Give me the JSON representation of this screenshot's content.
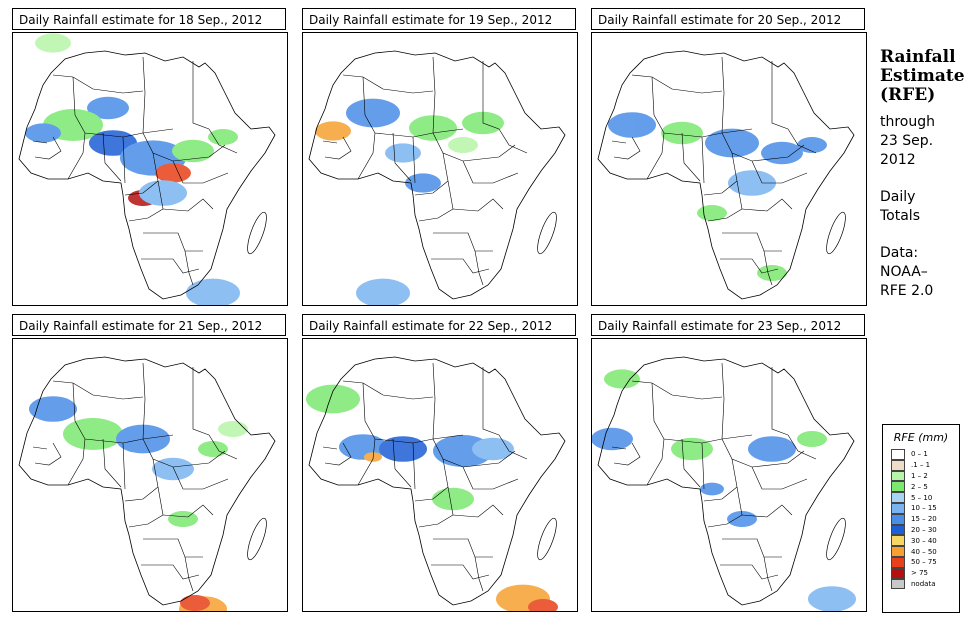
{
  "panels": [
    {
      "title": "Daily Rainfall estimate for  18 Sep., 2012"
    },
    {
      "title": "Daily Rainfall estimate for  19 Sep., 2012"
    },
    {
      "title": "Daily Rainfall estimate for  20 Sep., 2012"
    },
    {
      "title": "Daily Rainfall estimate for  21 Sep., 2012"
    },
    {
      "title": "Daily Rainfall estimate for  22 Sep., 2012"
    },
    {
      "title": "Daily Rainfall estimate for  23 Sep., 2012"
    }
  ],
  "side": {
    "heading1": "Rainfall",
    "heading2": "Estimate",
    "heading3": "(RFE)",
    "through1": "through",
    "through2": "23 Sep.",
    "through3": "2012",
    "daily1": "Daily",
    "daily2": "Totals",
    "data1": "Data:",
    "data2": "NOAA–",
    "data3": "RFE 2.0"
  },
  "legend": {
    "title": "RFE (mm)",
    "items": [
      {
        "label": "0 – 1",
        "color": "#ffffff"
      },
      {
        "label": ".1 – 1",
        "color": "#eddcc8"
      },
      {
        "label": "1 – 2",
        "color": "#b7f5a8"
      },
      {
        "label": "2 – 5",
        "color": "#7ce870"
      },
      {
        "label": "5 – 10",
        "color": "#a8d4f4"
      },
      {
        "label": "10 – 15",
        "color": "#7ab4f0"
      },
      {
        "label": "15 – 20",
        "color": "#4a8ee8"
      },
      {
        "label": "20 – 30",
        "color": "#1d5fd6"
      },
      {
        "label": "30 – 40",
        "color": "#f6d766"
      },
      {
        "label": "40 – 50",
        "color": "#f5a030"
      },
      {
        "label": "50 – 75",
        "color": "#e8401a"
      },
      {
        "label": "> 75",
        "color": "#b41010"
      },
      {
        "label": "nodata",
        "color": "#c8c8c8"
      }
    ]
  }
}
